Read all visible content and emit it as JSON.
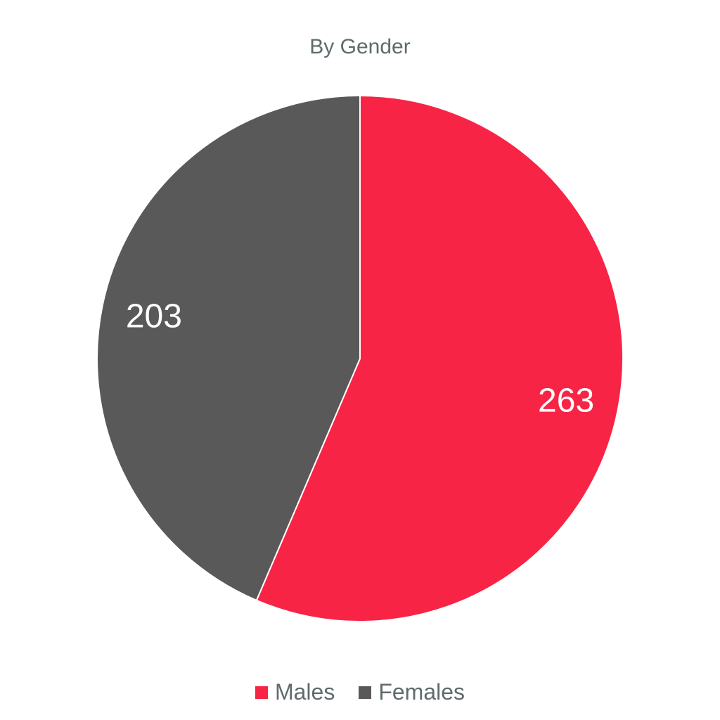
{
  "chart_data": {
    "type": "pie",
    "title": "By Gender",
    "slices": [
      {
        "label": "Males",
        "value": 263,
        "color": "#f72446"
      },
      {
        "label": "Females",
        "value": 203,
        "color": "#595959"
      }
    ],
    "legend_position": "bottom",
    "start_angle": "12 o'clock",
    "direction": "clockwise"
  }
}
